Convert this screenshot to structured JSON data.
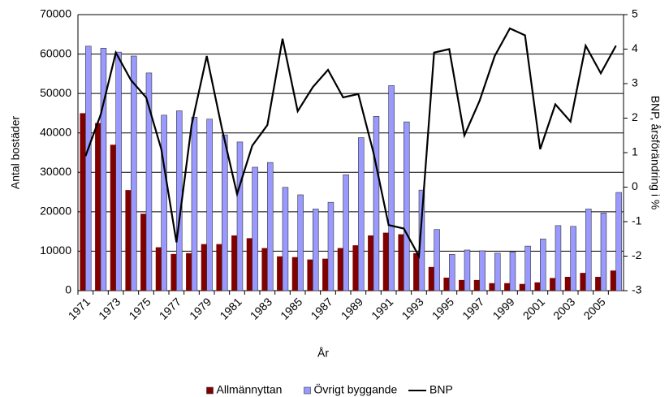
{
  "chart_data": {
    "type": "bar",
    "categories": [
      "1971",
      null,
      "1973",
      null,
      "1975",
      null,
      "1977",
      null,
      "1979",
      null,
      "1981",
      null,
      "1983",
      null,
      "1985",
      null,
      "1987",
      null,
      "1989",
      null,
      "1991",
      null,
      "1993",
      null,
      "1995",
      null,
      "1997",
      null,
      "1999",
      null,
      "2001",
      null,
      "2003",
      null,
      "2005",
      null
    ],
    "x_label": "År",
    "y_label": "Antal bostäder",
    "y2_label": "BNP, årsförändring i %",
    "ylim": [
      0,
      70000
    ],
    "yticks": [
      0,
      10000,
      20000,
      30000,
      40000,
      50000,
      60000,
      70000
    ],
    "y2lim": [
      -3,
      5
    ],
    "y2ticks": [
      -3,
      -2,
      -1,
      0,
      1,
      2,
      3,
      4,
      5
    ],
    "grid": true,
    "legend": "bottom",
    "series": [
      {
        "name": "Allmännyttan",
        "type": "bar",
        "color": "#800000",
        "values": [
          45000,
          42500,
          37000,
          25500,
          19500,
          11000,
          9300,
          9500,
          11800,
          11800,
          14000,
          13300,
          10800,
          8700,
          8500,
          7900,
          8100,
          10800,
          11500,
          14000,
          14700,
          14300,
          9500,
          6000,
          3300,
          2700,
          2700,
          1900,
          1900,
          1700,
          2100,
          3200,
          3500,
          4500,
          3500,
          5100
        ]
      },
      {
        "name": "Övrigt byggande",
        "type": "bar",
        "color": "#9999ff",
        "values": [
          62000,
          61500,
          60500,
          59500,
          55200,
          44500,
          45600,
          44000,
          43500,
          39500,
          37700,
          31300,
          32500,
          26200,
          24300,
          20700,
          22400,
          29400,
          38800,
          44200,
          52000,
          42800,
          25500,
          15500,
          9200,
          10300,
          10100,
          9500,
          9800,
          11300,
          13100,
          16500,
          16300,
          20700,
          19700,
          24900
        ]
      },
      {
        "name": "BNP",
        "type": "line",
        "axis": "y2",
        "color": "#000000",
        "values": [
          0.9,
          2.1,
          3.9,
          3.1,
          2.6,
          1.1,
          -1.6,
          1.8,
          3.8,
          1.7,
          -0.2,
          1.2,
          1.8,
          4.3,
          2.2,
          2.9,
          3.4,
          2.6,
          2.7,
          1.0,
          -1.1,
          -1.2,
          -2.0,
          3.9,
          4.0,
          1.5,
          2.5,
          3.8,
          4.6,
          4.4,
          1.1,
          2.4,
          1.9,
          4.1,
          3.3,
          4.1
        ]
      }
    ]
  }
}
